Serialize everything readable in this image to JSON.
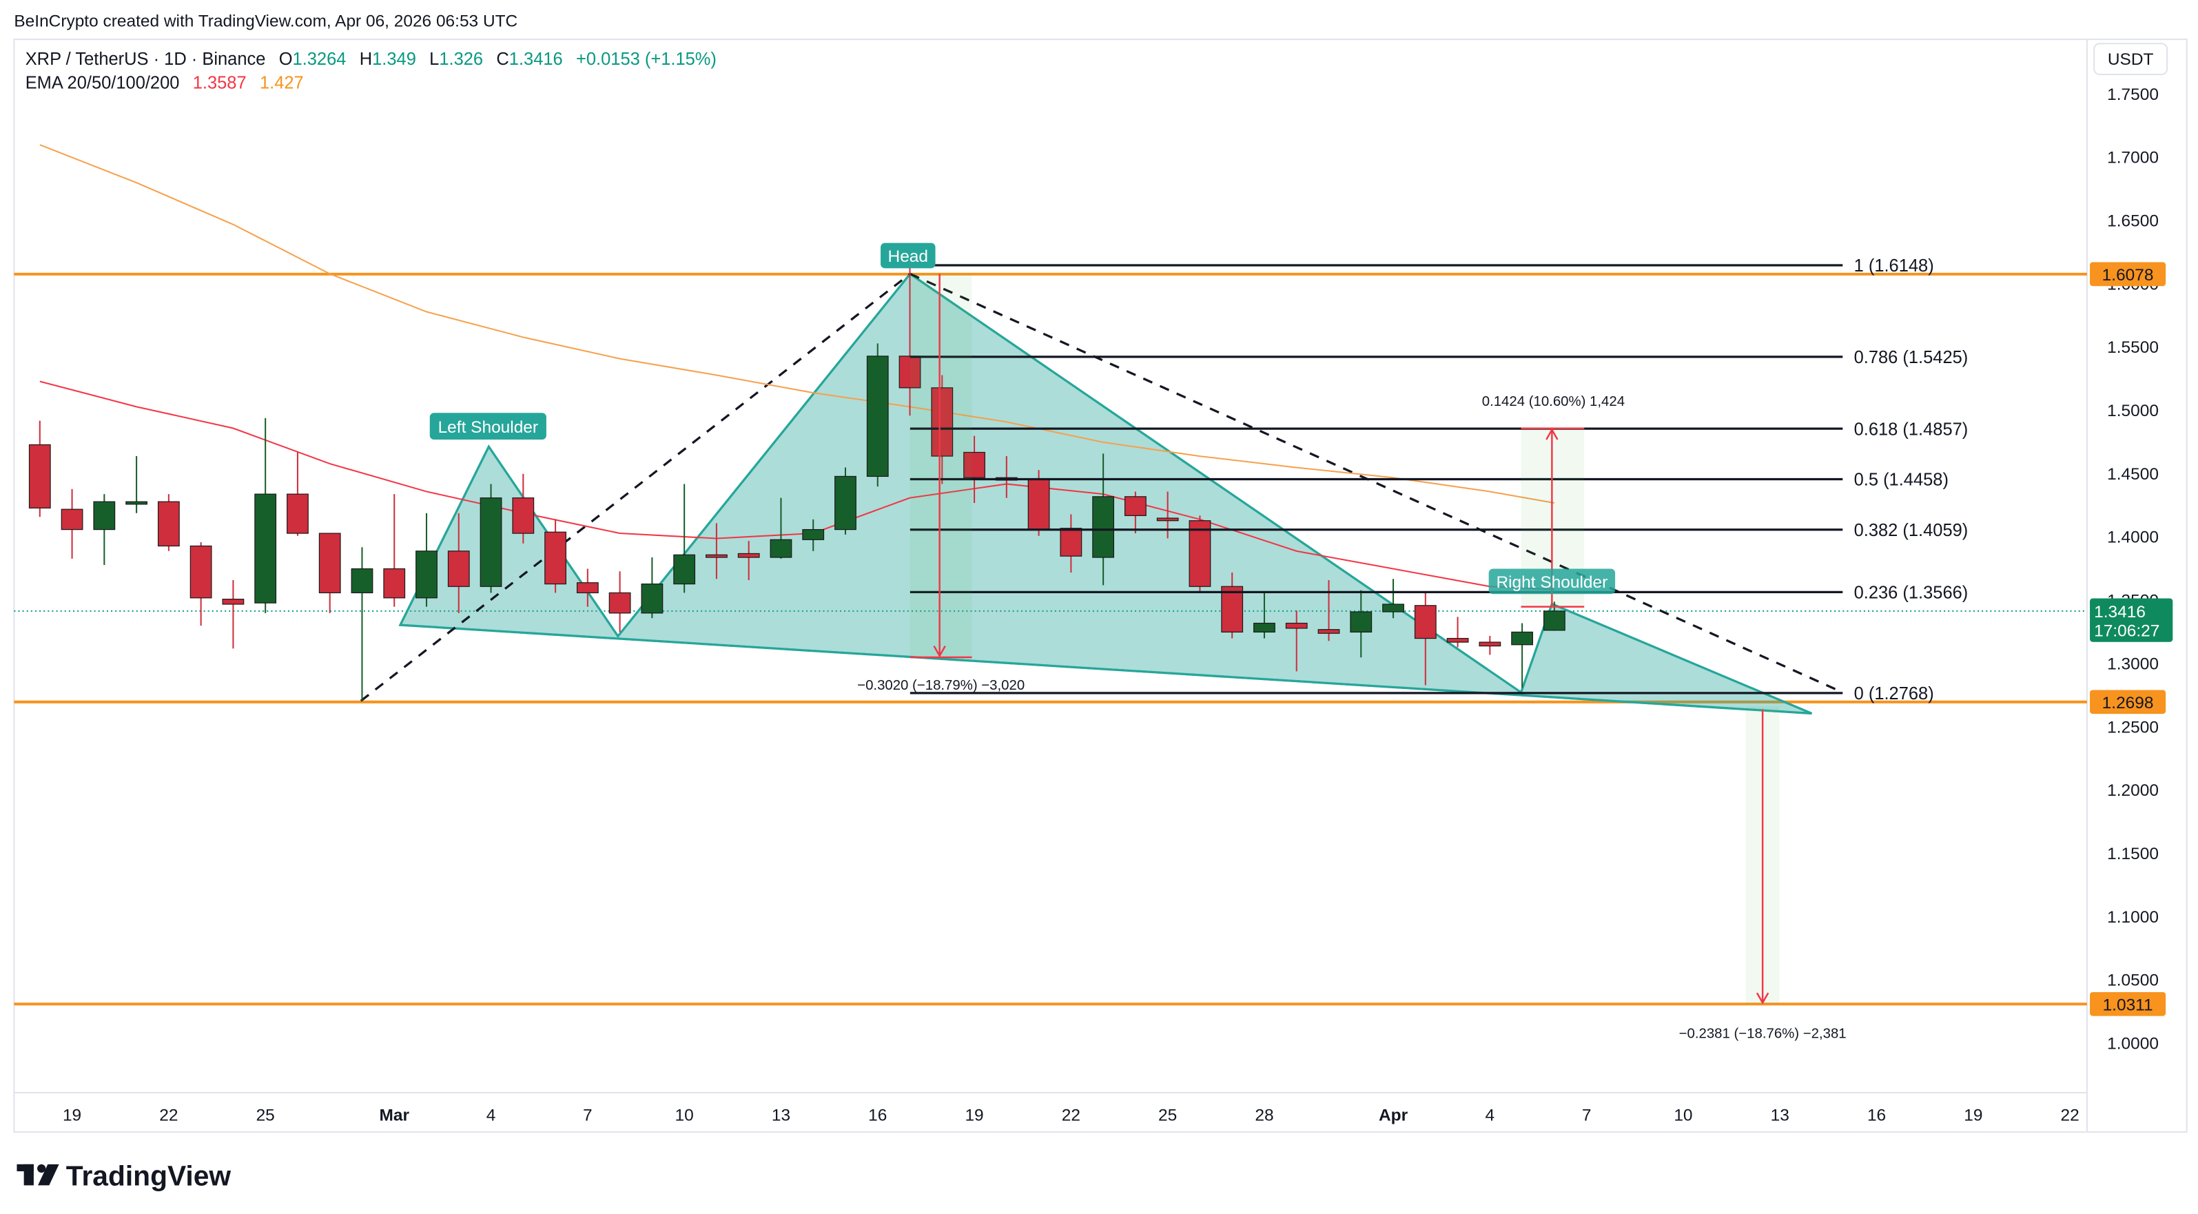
{
  "header": "BeInCrypto created with TradingView.com, Apr 06, 2026 06:53 UTC",
  "chart_data": {
    "type": "candlestick",
    "symbol": "XRP / TetherUS · 1D · Binance",
    "ohlc_labels": [
      "O",
      "H",
      "L",
      "C"
    ],
    "change": "+0.0153 (+1.15%)",
    "indicator": "EMA 20/50/100/200",
    "currency": "USDT",
    "up_color": "#175f2a",
    "down_color": "#cf2e3d",
    "x": [
      -1,
      0,
      1,
      2,
      3,
      4,
      5,
      6,
      7,
      8,
      9,
      10,
      11,
      12,
      13,
      14,
      15,
      16,
      17,
      18,
      19,
      20,
      21,
      22,
      23,
      24,
      25,
      26,
      27,
      28,
      29,
      30,
      31,
      32,
      33,
      34,
      35,
      36,
      37,
      38,
      39,
      40,
      41,
      42,
      43,
      44,
      45,
      46
    ],
    "open": [
      1.473,
      1.422,
      1.406,
      1.426,
      1.428,
      1.393,
      1.351,
      1.348,
      1.434,
      1.403,
      1.356,
      1.375,
      1.352,
      1.389,
      1.361,
      1.431,
      1.404,
      1.364,
      1.356,
      1.34,
      1.363,
      1.386,
      1.387,
      1.384,
      1.398,
      1.406,
      1.448,
      1.543,
      1.518,
      1.467,
      1.447,
      1.446,
      1.407,
      1.384,
      1.432,
      1.415,
      1.413,
      1.361,
      1.325,
      1.332,
      1.327,
      1.325,
      1.341,
      1.346,
      1.32,
      1.317,
      1.315,
      1.3264
    ],
    "high": [
      1.492,
      1.438,
      1.434,
      1.464,
      1.434,
      1.396,
      1.366,
      1.494,
      1.467,
      1.403,
      1.392,
      1.434,
      1.419,
      1.419,
      1.442,
      1.45,
      1.414,
      1.375,
      1.373,
      1.384,
      1.442,
      1.411,
      1.397,
      1.431,
      1.414,
      1.455,
      1.553,
      1.615,
      1.528,
      1.48,
      1.464,
      1.453,
      1.418,
      1.466,
      1.436,
      1.436,
      1.417,
      1.372,
      1.356,
      1.342,
      1.366,
      1.358,
      1.367,
      1.356,
      1.337,
      1.322,
      1.332,
      1.349
    ],
    "low": [
      1.416,
      1.383,
      1.378,
      1.419,
      1.389,
      1.33,
      1.312,
      1.34,
      1.401,
      1.34,
      1.271,
      1.345,
      1.345,
      1.34,
      1.356,
      1.395,
      1.356,
      1.345,
      1.325,
      1.336,
      1.356,
      1.367,
      1.366,
      1.383,
      1.389,
      1.402,
      1.44,
      1.496,
      1.442,
      1.427,
      1.431,
      1.401,
      1.372,
      1.362,
      1.403,
      1.399,
      1.356,
      1.32,
      1.32,
      1.294,
      1.318,
      1.305,
      1.336,
      1.283,
      1.313,
      1.307,
      1.281,
      1.326
    ],
    "close": [
      1.423,
      1.406,
      1.428,
      1.428,
      1.393,
      1.352,
      1.347,
      1.434,
      1.403,
      1.356,
      1.375,
      1.352,
      1.389,
      1.361,
      1.431,
      1.403,
      1.363,
      1.356,
      1.34,
      1.363,
      1.386,
      1.384,
      1.384,
      1.398,
      1.406,
      1.448,
      1.543,
      1.518,
      1.464,
      1.447,
      1.445,
      1.406,
      1.385,
      1.432,
      1.417,
      1.413,
      1.361,
      1.325,
      1.332,
      1.328,
      1.324,
      1.341,
      1.347,
      1.32,
      1.317,
      1.314,
      1.325,
      1.3416
    ],
    "ema": [
      {
        "color": "#f23645",
        "x": [
          -1,
          2,
          5,
          8,
          11,
          14,
          17,
          20,
          23,
          26,
          29,
          32,
          35,
          38,
          41,
          44,
          46
        ],
        "values": [
          1.523,
          1.503,
          1.486,
          1.458,
          1.436,
          1.419,
          1.403,
          1.399,
          1.403,
          1.431,
          1.442,
          1.434,
          1.414,
          1.389,
          1.375,
          1.361,
          1.3587
        ]
      },
      {
        "color": "#f7a04b",
        "x": [
          -1,
          2,
          5,
          8,
          11,
          14,
          17,
          20,
          23,
          26,
          29,
          32,
          35,
          38,
          41,
          44,
          46
        ],
        "values": [
          1.71,
          1.68,
          1.647,
          1.608,
          1.578,
          1.558,
          1.541,
          1.528,
          1.514,
          1.503,
          1.491,
          1.475,
          1.464,
          1.455,
          1.447,
          1.436,
          1.427
        ]
      }
    ],
    "xlim": [
      -1.8,
      62.4
    ],
    "xticks": [
      {
        "value": 0,
        "label": "19"
      },
      {
        "value": 3,
        "label": "22"
      },
      {
        "value": 6,
        "label": "25"
      },
      {
        "value": 10,
        "label": "Mar"
      },
      {
        "value": 13,
        "label": "4"
      },
      {
        "value": 16,
        "label": "7"
      },
      {
        "value": 19,
        "label": "10"
      },
      {
        "value": 22,
        "label": "13"
      },
      {
        "value": 25,
        "label": "16"
      },
      {
        "value": 28,
        "label": "19"
      },
      {
        "value": 31,
        "label": "22"
      },
      {
        "value": 34,
        "label": "25"
      },
      {
        "value": 37,
        "label": "28"
      },
      {
        "value": 41,
        "label": "Apr"
      },
      {
        "value": 44,
        "label": "4"
      },
      {
        "value": 47,
        "label": "7"
      },
      {
        "value": 50,
        "label": "10"
      },
      {
        "value": 53,
        "label": "13"
      },
      {
        "value": 56,
        "label": "16"
      },
      {
        "value": 59,
        "label": "19"
      },
      {
        "value": 62,
        "label": "22"
      }
    ],
    "ylim": [
      0.9611,
      1.7933
    ],
    "yticks": [
      {
        "value": 1.75,
        "label": "1.7500"
      },
      {
        "value": 1.7,
        "label": "1.7000"
      },
      {
        "value": 1.65,
        "label": "1.6500"
      },
      {
        "value": 1.6,
        "label": "1.6000"
      },
      {
        "value": 1.55,
        "label": "1.5500"
      },
      {
        "value": 1.5,
        "label": "1.5000"
      },
      {
        "value": 1.45,
        "label": "1.4500"
      },
      {
        "value": 1.4,
        "label": "1.4000"
      },
      {
        "value": 1.35,
        "label": "1.3500"
      },
      {
        "value": 1.3,
        "label": "1.3000"
      },
      {
        "value": 1.25,
        "label": "1.2500"
      },
      {
        "value": 1.2,
        "label": "1.2000"
      },
      {
        "value": 1.15,
        "label": "1.1500"
      },
      {
        "value": 1.1,
        "label": "1.1000"
      },
      {
        "value": 1.05,
        "label": "1.0500"
      },
      {
        "value": 1.0,
        "label": "1.0000"
      }
    ],
    "grid": false,
    "levels": [
      1.6078,
      1.2698,
      1.0311
    ],
    "level_color": "#f7931e",
    "last_price_color": "#0f8a5f",
    "countdown": "17:06:27",
    "fib": [
      {
        "label": "1 (1.6148)",
        "value": 1.6148
      },
      {
        "label": "0.786 (1.5425)",
        "value": 1.5425
      },
      {
        "label": "0.618 (1.4857)",
        "value": 1.4857
      },
      {
        "label": "0.5 (1.4458)",
        "value": 1.4458
      },
      {
        "label": "0.382 (1.4059)",
        "value": 1.4059
      },
      {
        "label": "0.236 (1.3566)",
        "value": 1.3566
      },
      {
        "label": "0 (1.2768)",
        "value": 1.2768
      }
    ],
    "annotations": [
      "Left Shoulder",
      "Head",
      "Right Shoulder"
    ],
    "measurements": [
      "−0.3020 (−18.79%) −3,020",
      "0.1424 (10.60%) 1,424",
      "−0.2381 (−18.76%) −2,381"
    ]
  },
  "footer": "TradingView"
}
